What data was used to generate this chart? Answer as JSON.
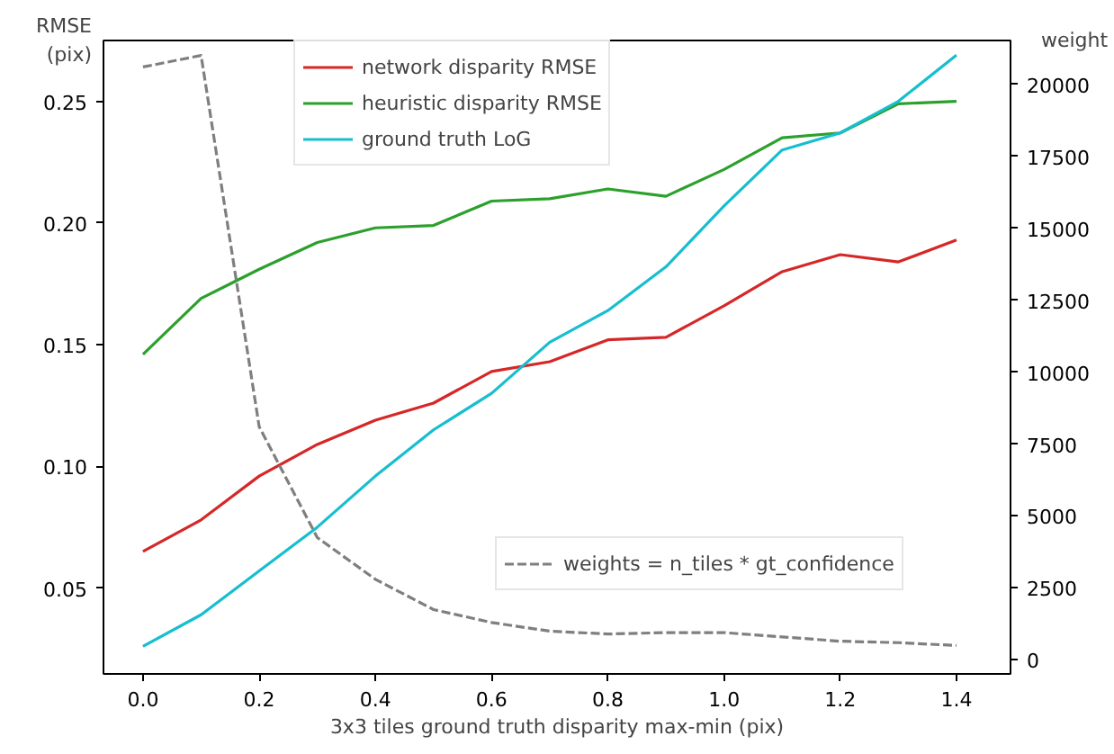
{
  "chart_data": {
    "type": "line",
    "xlabel": "3x3 tiles ground truth disparity max-min (pix)",
    "ylabel": "RMSE\n(pix)",
    "y2label": "weight",
    "x": [
      0.0,
      0.1,
      0.2,
      0.3,
      0.4,
      0.5,
      0.6,
      0.7,
      0.8,
      0.9,
      1.0,
      1.1,
      1.2,
      1.3,
      1.4
    ],
    "series": [
      {
        "name": "network disparity RMSE",
        "color": "#d62728",
        "values": [
          0.065,
          0.078,
          0.096,
          0.109,
          0.119,
          0.126,
          0.139,
          0.143,
          0.152,
          0.153,
          0.166,
          0.18,
          0.187,
          0.184,
          0.193
        ]
      },
      {
        "name": "heuristic disparity RMSE",
        "color": "#2ca02c",
        "values": [
          0.146,
          0.169,
          0.181,
          0.192,
          0.198,
          0.199,
          0.209,
          0.21,
          0.214,
          0.211,
          0.222,
          0.235,
          0.237,
          0.249,
          0.25
        ]
      },
      {
        "name": "ground truth LoG",
        "color": "#17becf",
        "values": [
          0.026,
          0.039,
          0.057,
          0.075,
          0.096,
          0.115,
          0.13,
          0.151,
          0.164,
          0.182,
          0.207,
          0.23,
          0.237,
          0.25,
          0.269
        ]
      },
      {
        "name": "weights = n_tiles * gt_confidence",
        "color": "#7f7f7f",
        "axis": "y2",
        "line_style": "dashed",
        "values": [
          20600,
          21000,
          8100,
          4250,
          2800,
          1750,
          1300,
          1000,
          900,
          950,
          950,
          800,
          650,
          600,
          500
        ]
      }
    ],
    "xlim": [
      -0.068,
      1.493
    ],
    "ylim": [
      0.0147,
      0.275
    ],
    "y2lim": [
      -486,
      21520
    ],
    "xticks": [
      {
        "value": 0.0,
        "label": "0.0"
      },
      0.2,
      0.4,
      0.6,
      0.8,
      {
        "value": 1.0,
        "label": "1.0"
      },
      1.2,
      1.4
    ],
    "yticks": [
      0.05,
      {
        "value": 0.1,
        "label": "0.10"
      },
      0.15,
      {
        "value": 0.2,
        "label": "0.20"
      },
      0.25
    ],
    "y2ticks": [
      0,
      2500,
      5000,
      7500,
      10000,
      12500,
      15000,
      17500,
      20000
    ],
    "legend": "top",
    "grid": false,
    "marker": "none",
    "line_style": "solid"
  }
}
